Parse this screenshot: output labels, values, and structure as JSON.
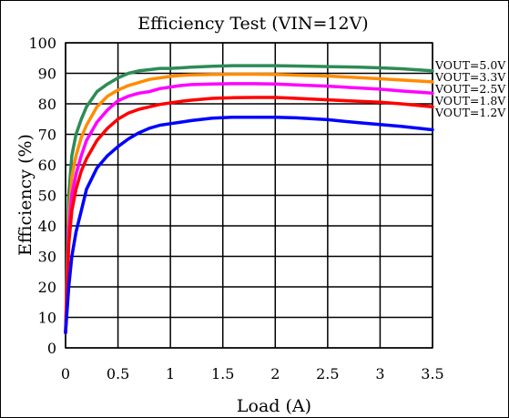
{
  "chart_data": {
    "type": "line",
    "title": "Efficiency  Test (VIN=12V)",
    "xlabel": "Load (A)",
    "ylabel": "Efficiency (%)",
    "xlim": [
      0,
      3.5
    ],
    "ylim": [
      0,
      100
    ],
    "x_ticks": [
      "0",
      "0.5",
      "1",
      "1.5",
      "2",
      "2.5",
      "3",
      "3.5"
    ],
    "y_ticks": [
      "0",
      "10",
      "20",
      "30",
      "40",
      "50",
      "60",
      "70",
      "80",
      "90",
      "100"
    ],
    "x_tick_values": [
      0,
      0.5,
      1,
      1.5,
      2,
      2.5,
      3,
      3.5
    ],
    "y_tick_values": [
      0,
      10,
      20,
      30,
      40,
      50,
      60,
      70,
      80,
      90,
      100
    ],
    "grid": true,
    "legend_placement": "right",
    "series": [
      {
        "name": "VOUT=5.0V",
        "color": "#2e8b57",
        "x": [
          0,
          0.03,
          0.06,
          0.1,
          0.15,
          0.2,
          0.3,
          0.4,
          0.5,
          0.6,
          0.7,
          0.8,
          0.9,
          1.0,
          1.1,
          1.2,
          1.4,
          1.6,
          1.8,
          2.0,
          2.2,
          2.5,
          2.8,
          3.0,
          3.2,
          3.5
        ],
        "y": [
          5,
          50,
          63,
          70,
          75,
          79,
          84,
          86.5,
          88.5,
          90,
          90.8,
          91.2,
          91.6,
          91.6,
          91.8,
          92,
          92.3,
          92.5,
          92.5,
          92.5,
          92.4,
          92.2,
          92,
          91.8,
          91.5,
          90.8
        ]
      },
      {
        "name": "VOUT=3.3V",
        "color": "#ff8c00",
        "x": [
          0,
          0.03,
          0.06,
          0.1,
          0.15,
          0.2,
          0.3,
          0.4,
          0.5,
          0.6,
          0.7,
          0.8,
          0.9,
          1.0,
          1.1,
          1.2,
          1.4,
          1.6,
          1.8,
          2.0,
          2.2,
          2.5,
          2.8,
          3.0,
          3.2,
          3.5
        ],
        "y": [
          5,
          42,
          56,
          63,
          69,
          73,
          79,
          82.5,
          84.5,
          86,
          87,
          88,
          88.5,
          89,
          89.3,
          89.5,
          89.6,
          89.7,
          89.7,
          89.6,
          89.4,
          89.1,
          88.6,
          88.2,
          87.8,
          87.2
        ]
      },
      {
        "name": "VOUT=2.5V",
        "color": "#ff00ff",
        "x": [
          0,
          0.03,
          0.06,
          0.1,
          0.15,
          0.2,
          0.3,
          0.4,
          0.5,
          0.6,
          0.7,
          0.8,
          0.9,
          1.0,
          1.1,
          1.2,
          1.4,
          1.6,
          1.8,
          2.0,
          2.2,
          2.5,
          2.8,
          3.0,
          3.2,
          3.5
        ],
        "y": [
          5,
          38,
          50,
          57,
          63,
          68,
          74,
          78,
          81,
          82.5,
          83.5,
          84,
          85,
          85.5,
          86,
          86.3,
          86.5,
          86.6,
          86.6,
          86.5,
          86.2,
          85.8,
          85.2,
          84.8,
          84.2,
          83.5
        ]
      },
      {
        "name": "VOUT=1.8V",
        "color": "#ff0000",
        "x": [
          0,
          0.03,
          0.06,
          0.1,
          0.15,
          0.2,
          0.3,
          0.4,
          0.5,
          0.6,
          0.7,
          0.8,
          0.9,
          1.0,
          1.1,
          1.2,
          1.4,
          1.6,
          1.8,
          2.0,
          2.2,
          2.5,
          2.8,
          3.0,
          3.2,
          3.5
        ],
        "y": [
          5,
          34,
          45,
          52,
          58,
          62,
          68,
          72,
          75,
          77,
          78.2,
          79,
          79.8,
          80.3,
          80.8,
          81.2,
          81.8,
          82,
          82.1,
          82.1,
          81.8,
          81.3,
          80.8,
          80.5,
          80,
          79
        ]
      },
      {
        "name": "VOUT=1.2V",
        "color": "#0000ff",
        "x": [
          0,
          0.03,
          0.06,
          0.1,
          0.15,
          0.2,
          0.3,
          0.4,
          0.5,
          0.6,
          0.7,
          0.8,
          0.9,
          1.0,
          1.1,
          1.2,
          1.4,
          1.6,
          1.8,
          2.0,
          2.2,
          2.5,
          2.8,
          3.0,
          3.2,
          3.5
        ],
        "y": [
          5,
          20,
          30,
          38,
          45,
          52,
          59,
          63,
          66,
          68.5,
          70.5,
          72,
          73,
          73.5,
          74,
          74.5,
          75.3,
          75.6,
          75.6,
          75.6,
          75.4,
          74.8,
          73.8,
          73.2,
          72.6,
          71.5
        ]
      }
    ]
  }
}
